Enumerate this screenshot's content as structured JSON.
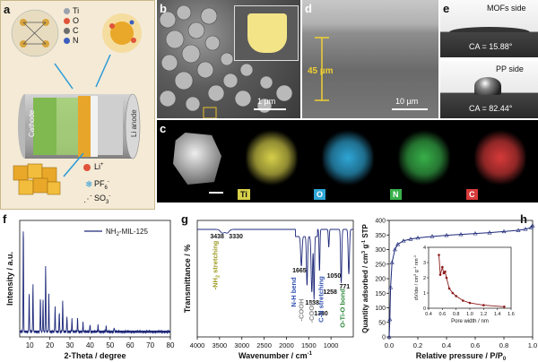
{
  "panels": {
    "a": {
      "label": "a",
      "legend_top": [
        {
          "symbol": "Ti",
          "color": "#9aa2ad"
        },
        {
          "symbol": "O",
          "color": "#e0533a"
        },
        {
          "symbol": "C",
          "color": "#6d6d6d"
        },
        {
          "symbol": "N",
          "color": "#3c5fbf"
        }
      ],
      "cathode": "Cathode",
      "anode": "Li anode",
      "legend_bottom": [
        {
          "name": "Li",
          "sup": "+"
        },
        {
          "name": "PF",
          "sub": "6",
          "sup": "-"
        },
        {
          "name": "SO",
          "sub": "3",
          "sup": "-"
        }
      ]
    },
    "b": {
      "label": "b",
      "scale": "1 µm"
    },
    "d": {
      "label": "d",
      "thickness": "45 µm",
      "scale": "10 µm"
    },
    "e": {
      "label": "e",
      "top_title": "MOFs side",
      "top_ca": "CA = 15.88°",
      "bottom_title": "PP side",
      "bottom_ca": "CA = 82.44°"
    },
    "c": {
      "label": "c",
      "maps": [
        "Ti",
        "O",
        "N",
        "C"
      ]
    },
    "f": {
      "label": "f"
    },
    "g": {
      "label": "g"
    },
    "h": {
      "label": "h"
    }
  },
  "chart_data": [
    {
      "type": "line",
      "panel": "f",
      "series": [
        {
          "name": "NH2-MIL-125"
        }
      ],
      "xlabel": "2-Theta / degree",
      "ylabel": "Intensity / a.u.",
      "xlim": [
        5,
        80
      ],
      "xticks": [
        10,
        20,
        30,
        40,
        50,
        60,
        70,
        80
      ],
      "peaks": [
        {
          "x": 6.8,
          "h": 0.97
        },
        {
          "x": 9.7,
          "h": 0.35
        },
        {
          "x": 11.6,
          "h": 0.42
        },
        {
          "x": 15.3,
          "h": 0.3
        },
        {
          "x": 16.6,
          "h": 0.28
        },
        {
          "x": 17.9,
          "h": 0.6
        },
        {
          "x": 19.5,
          "h": 0.33
        },
        {
          "x": 22.6,
          "h": 0.22
        },
        {
          "x": 24.7,
          "h": 0.18
        },
        {
          "x": 26.4,
          "h": 0.27
        },
        {
          "x": 28.5,
          "h": 0.14
        },
        {
          "x": 31.0,
          "h": 0.11
        },
        {
          "x": 33.8,
          "h": 0.12
        },
        {
          "x": 36.5,
          "h": 0.08
        },
        {
          "x": 40.0,
          "h": 0.07
        },
        {
          "x": 44.0,
          "h": 0.06
        },
        {
          "x": 48.0,
          "h": 0.05
        },
        {
          "x": 52.0,
          "h": 0.04
        }
      ]
    },
    {
      "type": "line",
      "panel": "g",
      "xlabel": "Wavenumber / cm",
      "xlabel_sup": "-1",
      "ylabel": "Transmittance / %",
      "xlim": [
        4000,
        500
      ],
      "xticks": [
        4000,
        3500,
        3000,
        2500,
        2000,
        1500,
        1000
      ],
      "peak_labels": [
        {
          "text": "3438",
          "x": 3438
        },
        {
          "text": "3330",
          "x": 3330
        },
        {
          "text": "1665",
          "x": 1665
        },
        {
          "text": "1538",
          "x": 1538
        },
        {
          "text": "1380",
          "x": 1380
        },
        {
          "text": "1258",
          "x": 1258
        },
        {
          "text": "1050",
          "x": 1050
        },
        {
          "text": "771",
          "x": 771
        }
      ],
      "band_labels": [
        {
          "text": "-NH",
          "sub": "2",
          "tail": " stretching",
          "color": "#9c9a1f",
          "x": 3550
        },
        {
          "text": "N-H bend",
          "color": "#3050b0",
          "x": 1665
        },
        {
          "text": "-COOH",
          "color": "#888888",
          "x": 1560
        },
        {
          "text": "-COOH",
          "color": "#888888",
          "x": 1410
        },
        {
          "text": "C-N stretching",
          "color": "#3050b0",
          "x": 1258
        },
        {
          "text": "O-Ti-O bond",
          "color": "#2e8a3a",
          "x": 771
        }
      ],
      "dips": [
        {
          "x": 3438,
          "d": 0.04,
          "w": 60
        },
        {
          "x": 3330,
          "d": 0.04,
          "w": 60
        },
        {
          "x": 1665,
          "d": 0.33,
          "w": 22
        },
        {
          "x": 1538,
          "d": 0.55,
          "w": 18
        },
        {
          "x": 1430,
          "d": 0.62,
          "w": 22
        },
        {
          "x": 1380,
          "d": 0.7,
          "w": 14
        },
        {
          "x": 1258,
          "d": 0.47,
          "w": 14
        },
        {
          "x": 1050,
          "d": 0.2,
          "w": 14
        },
        {
          "x": 771,
          "d": 0.6,
          "w": 18
        },
        {
          "x": 600,
          "d": 0.5,
          "w": 20
        }
      ]
    },
    {
      "type": "line",
      "panel": "h",
      "xlabel": "Relative pressure / P/P",
      "xlabel_sub": "0",
      "ylabel": "Quantity adsorbed / cm",
      "ylabel_sup": "3",
      "ylabel_unit": "g",
      "ylabel_unit_sup": "-1",
      "ylabel_tail": " STP",
      "xlim": [
        0,
        1.0
      ],
      "ylim": [
        0,
        400
      ],
      "xticks": [
        0.0,
        0.2,
        0.4,
        0.6,
        0.8,
        1.0
      ],
      "yticks": [
        0,
        50,
        100,
        150,
        200,
        250,
        300,
        350,
        400
      ],
      "series": [
        {
          "x": [
            0.0,
            0.005,
            0.01,
            0.02,
            0.04,
            0.06,
            0.1,
            0.15,
            0.2,
            0.3,
            0.4,
            0.5,
            0.6,
            0.7,
            0.8,
            0.9,
            0.95,
            0.99,
            1.0
          ],
          "y": [
            0,
            60,
            170,
            255,
            300,
            318,
            330,
            336,
            340,
            345,
            349,
            352,
            355,
            358,
            362,
            366,
            370,
            376,
            382
          ]
        }
      ],
      "inset": {
        "xlabel": "Pore width / nm",
        "ylabel": "dV/dw / cm",
        "ylabel_sup": "3",
        "ylabel_unit": "g",
        "ylabel_unit_sup": "-1",
        "ylabel_tail": " nm",
        "ylabel_tail_sup": "-1",
        "xlim": [
          0.4,
          1.6
        ],
        "ylim": [
          0,
          4
        ],
        "xticks": [
          0.4,
          0.6,
          0.8,
          1.0,
          1.2,
          1.4,
          1.6
        ],
        "yticks": [
          0,
          1,
          2,
          3,
          4
        ],
        "x": [
          0.55,
          0.57,
          0.6,
          0.62,
          0.64,
          0.66,
          0.7,
          0.75,
          0.8,
          0.9,
          1.0,
          1.2,
          1.5
        ],
        "y": [
          3.5,
          2.2,
          2.7,
          2.3,
          2.4,
          2.0,
          1.3,
          1.0,
          0.8,
          0.5,
          0.35,
          0.2,
          0.1
        ]
      }
    }
  ]
}
